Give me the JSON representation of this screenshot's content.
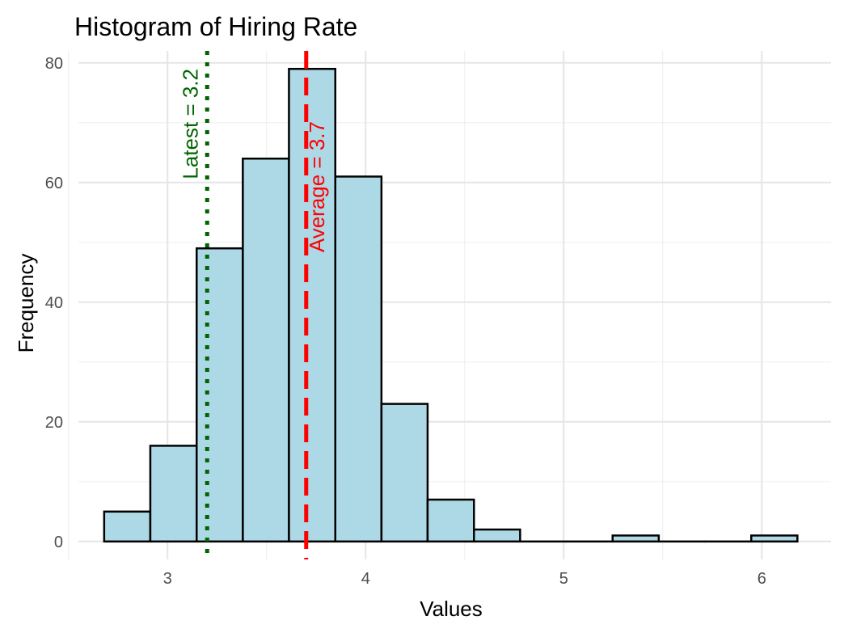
{
  "chart_data": {
    "type": "bar",
    "title": "Histogram of Hiring Rate",
    "xlabel": "Values",
    "ylabel": "Frequency",
    "xlim": [
      2.55,
      6.35
    ],
    "ylim": [
      -3,
      82
    ],
    "x_ticks": [
      3,
      4,
      5,
      6
    ],
    "y_ticks": [
      0,
      20,
      40,
      60,
      80
    ],
    "bin_width": 0.2333,
    "bins": [
      {
        "start": 2.68,
        "end": 2.913,
        "count": 5
      },
      {
        "start": 2.913,
        "end": 3.147,
        "count": 16
      },
      {
        "start": 3.147,
        "end": 3.38,
        "count": 49
      },
      {
        "start": 3.38,
        "end": 3.613,
        "count": 64
      },
      {
        "start": 3.613,
        "end": 3.847,
        "count": 79
      },
      {
        "start": 3.847,
        "end": 4.08,
        "count": 61
      },
      {
        "start": 4.08,
        "end": 4.313,
        "count": 23
      },
      {
        "start": 4.313,
        "end": 4.547,
        "count": 7
      },
      {
        "start": 4.547,
        "end": 4.78,
        "count": 2
      },
      {
        "start": 4.78,
        "end": 5.013,
        "count": 0
      },
      {
        "start": 5.013,
        "end": 5.247,
        "count": 0
      },
      {
        "start": 5.247,
        "end": 5.48,
        "count": 1
      },
      {
        "start": 5.48,
        "end": 5.713,
        "count": 0
      },
      {
        "start": 5.713,
        "end": 5.947,
        "count": 0
      },
      {
        "start": 5.947,
        "end": 6.18,
        "count": 1
      }
    ],
    "bar_fill": "#add8e6",
    "bar_stroke": "#000000",
    "grid": true,
    "reference_lines": [
      {
        "name": "latest",
        "value": 3.2,
        "label": "Latest = 3.2",
        "color": "#006400",
        "style": "dotted"
      },
      {
        "name": "average",
        "value": 3.7,
        "label": "Average = 3.7",
        "color": "#ff0000",
        "style": "dashed"
      }
    ]
  }
}
